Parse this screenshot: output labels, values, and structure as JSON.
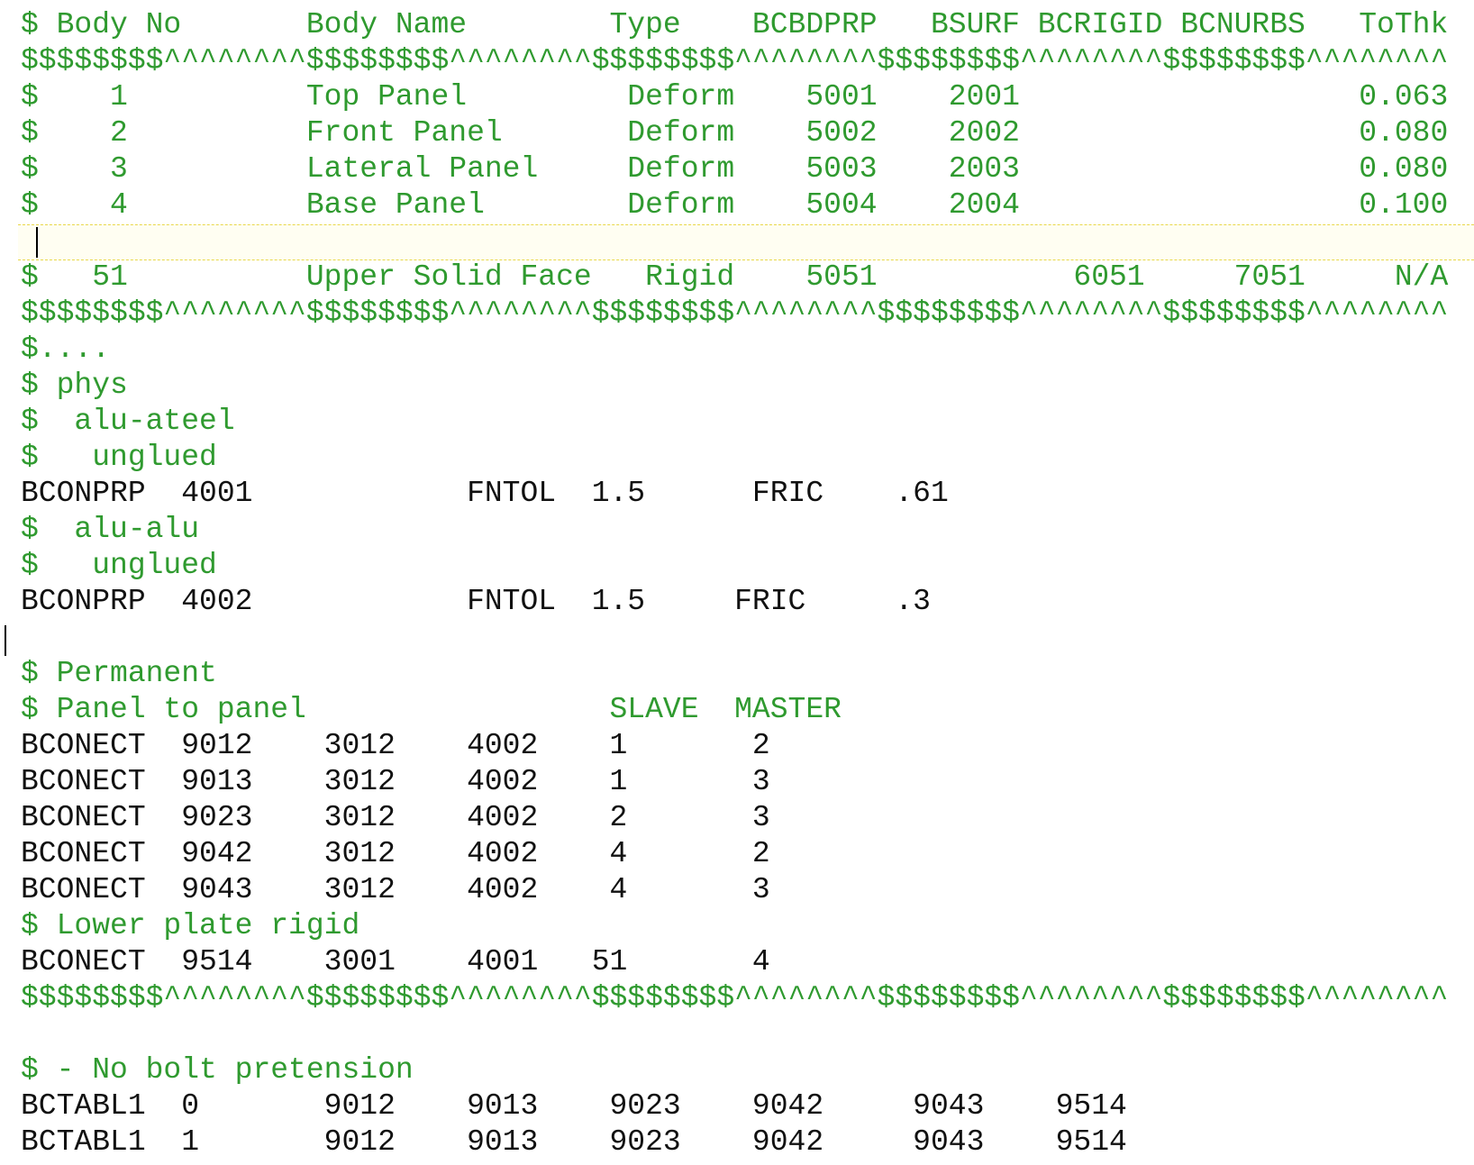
{
  "lines": [
    "$ Body No       Body Name        Type    BCBDPRP   BSURF BCRIGID BCNURBS   ToThk",
    "$$$$$$$$^^^^^^^^$$$$$$$$^^^^^^^^$$$$$$$$^^^^^^^^$$$$$$$$^^^^^^^^$$$$$$$$^^^^^^^^",
    "$    1          Top Panel         Deform    5001    2001                   0.063",
    "$    2          Front Panel       Deform    5002    2002                   0.080",
    "$    3          Lateral Panel     Deform    5003    2003                   0.080",
    "$    4          Base Panel        Deform    5004    2004                   0.100",
    null,
    "$   51          Upper Solid Face   Rigid    5051           6051     7051     N/A",
    "$$$$$$$$^^^^^^^^$$$$$$$$^^^^^^^^$$$$$$$$^^^^^^^^$$$$$$$$^^^^^^^^$$$$$$$$^^^^^^^^",
    "$....",
    "$ phys",
    "$  alu-ateel",
    "$   unglued",
    "BCONPRP  4001            FNTOL  1.5      FRIC    .61",
    "$  alu-alu",
    "$   unglued",
    "BCONPRP  4002            FNTOL  1.5     FRIC     .3",
    null,
    "$ Permanent",
    "$ Panel to panel                 SLAVE  MASTER",
    "BCONECT  9012    3012    4002    1       2",
    "BCONECT  9013    3012    4002    1       3",
    "BCONECT  9023    3012    4002    2       3",
    "BCONECT  9042    3012    4002    4       2",
    "BCONECT  9043    3012    4002    4       3",
    "$ Lower plate rigid",
    "BCONECT  9514    3001    4001   51       4",
    "$$$$$$$$^^^^^^^^$$$$$$$$^^^^^^^^$$$$$$$$^^^^^^^^$$$$$$$$^^^^^^^^$$$$$$$$^^^^^^^^",
    null,
    "$ - No bolt pretension",
    "BCTABL1  0       9012    9013    9023    9042     9043    9514",
    "BCTABL1  1       9012    9013    9023    9042     9043    9514"
  ]
}
